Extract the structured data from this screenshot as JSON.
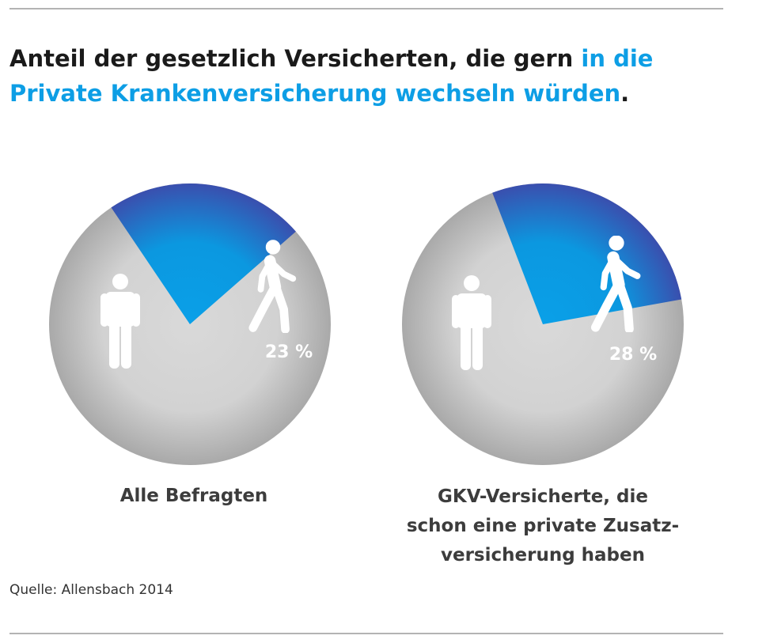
{
  "title": {
    "part1": "Anteil der gesetzlich Versicherten, die gern ",
    "part2": "in die",
    "part3": "Private Krankenversicherung wechseln würden",
    "part4": "."
  },
  "source": "Quelle: Allensbach 2014",
  "colors": {
    "highlight": "#0d9ee5",
    "slice_light": "#0b9be3",
    "slice_dark": "#3656b3",
    "pie_gray": "#d0d0d0",
    "caption": "#3c3c3c"
  },
  "icons": {
    "standing": "person-standing-icon",
    "walking": "person-walking-icon"
  },
  "chart_data": [
    {
      "type": "pie",
      "caption": "Alle Befragten",
      "slices": [
        {
          "value": 23,
          "label": "23 %",
          "color": "#0b9be3",
          "icon": "person-walking-icon"
        },
        {
          "value": 77,
          "label": "",
          "color": "#d0d0d0",
          "icon": "person-standing-icon"
        }
      ]
    },
    {
      "type": "pie",
      "caption": "GKV-Versicherte, die schon eine private Zusatz- versicherung haben",
      "slices": [
        {
          "value": 28,
          "label": "28 %",
          "color": "#0b9be3",
          "icon": "person-walking-icon"
        },
        {
          "value": 72,
          "label": "",
          "color": "#d0d0d0",
          "icon": "person-standing-icon"
        }
      ]
    }
  ]
}
